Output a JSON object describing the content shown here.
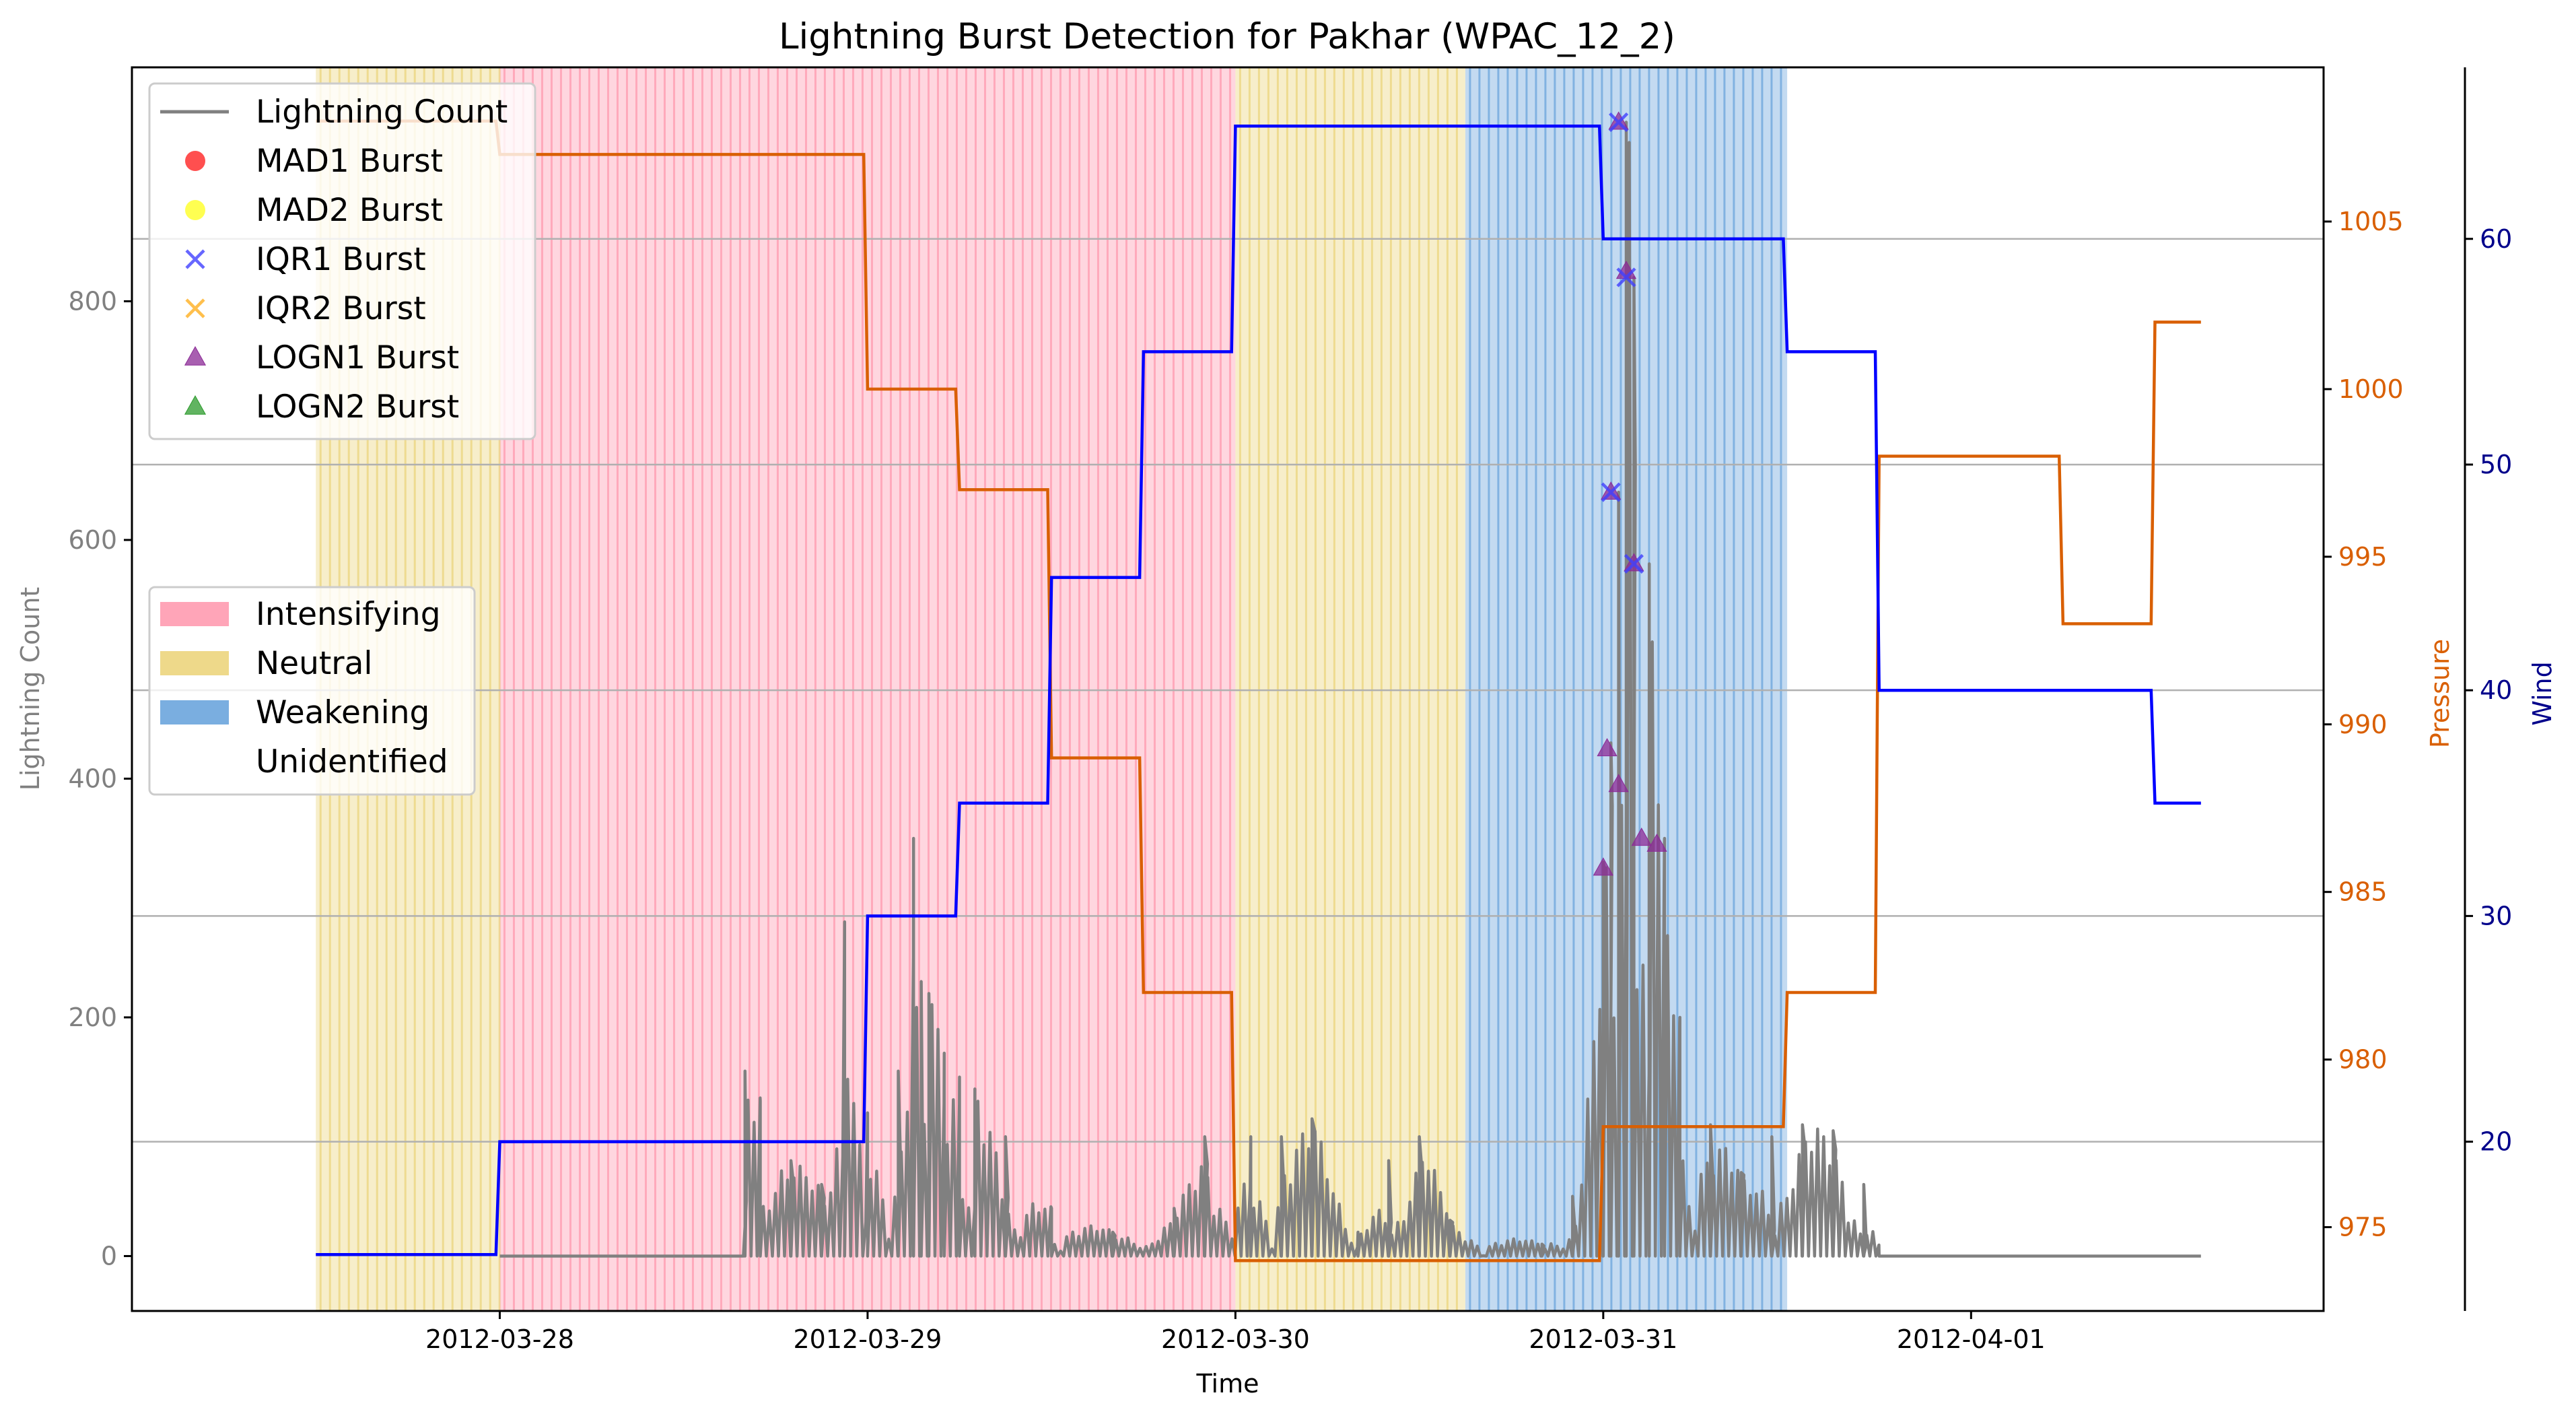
{
  "chart_data": {
    "type": "line",
    "title": "Lightning Burst Detection for Pakhar (WPAC_12_2)",
    "xlabel": "Time",
    "ylabel_left": "Lightning Count",
    "ylabel_right1": "Pressure",
    "ylabel_right2": "Wind",
    "x_ticks": [
      "2012-03-28",
      "2012-03-29",
      "2012-03-30",
      "2012-03-31",
      "2012-04-01"
    ],
    "x_range": [
      "2012-03-27T00:00",
      "2012-04-01T23:00"
    ],
    "y_left_range": [
      -46,
      996
    ],
    "y_left_ticks": [
      0,
      200,
      400,
      600,
      800
    ],
    "y_pressure_range": [
      972.5,
      1009.6
    ],
    "y_pressure_ticks": [
      975,
      980,
      985,
      990,
      995,
      1000,
      1005
    ],
    "y_wind_range": [
      12.5,
      67.6
    ],
    "y_wind_ticks": [
      20,
      30,
      40,
      50,
      60
    ],
    "grid": "horizontal on wind axis",
    "colors": {
      "lightning": "#808080",
      "pressure": "#d95f02",
      "wind": "#0000ff",
      "axis_pressure": "#d95f02",
      "axis_wind": "#00008b",
      "intensifying": "#ffa5b8",
      "neutral": "#eed98a",
      "weakening": "#7aaee0"
    },
    "phases": [
      {
        "label": "Neutral",
        "start": "2012-03-27T12:00",
        "end": "2012-03-28T00:00"
      },
      {
        "label": "Intensifying",
        "start": "2012-03-28T00:00",
        "end": "2012-03-30T00:00"
      },
      {
        "label": "Neutral",
        "start": "2012-03-30T00:00",
        "end": "2012-03-30T15:00"
      },
      {
        "label": "Weakening",
        "start": "2012-03-30T15:00",
        "end": "2012-03-31T12:00"
      }
    ],
    "pressure_series": {
      "name": "Pressure",
      "points": [
        [
          "2012-03-27T12:00",
          1008
        ],
        [
          "2012-03-27T23:45",
          1008
        ],
        [
          "2012-03-28T00:00",
          1007
        ],
        [
          "2012-03-28T23:45",
          1007
        ],
        [
          "2012-03-29T00:00",
          1000
        ],
        [
          "2012-03-29T05:45",
          1000
        ],
        [
          "2012-03-29T06:00",
          997
        ],
        [
          "2012-03-29T11:45",
          997
        ],
        [
          "2012-03-29T12:00",
          989
        ],
        [
          "2012-03-29T17:45",
          989
        ],
        [
          "2012-03-29T18:00",
          982
        ],
        [
          "2012-03-29T23:45",
          982
        ],
        [
          "2012-03-30T00:00",
          974
        ],
        [
          "2012-03-30T23:45",
          974
        ],
        [
          "2012-03-31T00:00",
          978
        ],
        [
          "2012-03-31T11:45",
          978
        ],
        [
          "2012-03-31T12:00",
          982
        ],
        [
          "2012-03-31T17:45",
          982
        ],
        [
          "2012-03-31T18:00",
          998
        ],
        [
          "2012-04-01T05:45",
          998
        ],
        [
          "2012-04-01T06:00",
          993
        ],
        [
          "2012-04-01T11:45",
          993
        ],
        [
          "2012-04-01T12:00",
          1002
        ],
        [
          "2012-04-01T15:00",
          1002
        ]
      ]
    },
    "wind_series": {
      "name": "Wind",
      "points": [
        [
          "2012-03-27T12:00",
          15
        ],
        [
          "2012-03-27T23:45",
          15
        ],
        [
          "2012-03-28T00:00",
          20
        ],
        [
          "2012-03-28T23:45",
          20
        ],
        [
          "2012-03-29T00:00",
          30
        ],
        [
          "2012-03-29T05:45",
          30
        ],
        [
          "2012-03-29T06:00",
          35
        ],
        [
          "2012-03-29T11:45",
          35
        ],
        [
          "2012-03-29T12:00",
          45
        ],
        [
          "2012-03-29T17:45",
          45
        ],
        [
          "2012-03-29T18:00",
          55
        ],
        [
          "2012-03-29T23:45",
          55
        ],
        [
          "2012-03-30T00:00",
          65
        ],
        [
          "2012-03-30T23:45",
          65
        ],
        [
          "2012-03-31T00:00",
          60
        ],
        [
          "2012-03-31T11:45",
          60
        ],
        [
          "2012-03-31T12:00",
          55
        ],
        [
          "2012-03-31T17:45",
          55
        ],
        [
          "2012-03-31T18:00",
          40
        ],
        [
          "2012-04-01T11:45",
          40
        ],
        [
          "2012-04-01T12:00",
          35
        ],
        [
          "2012-04-01T15:00",
          35
        ]
      ]
    },
    "lightning_series": {
      "name": "Lightning Count",
      "peaks": [
        [
          "2012-03-28T00:00",
          0
        ],
        [
          "2012-03-28T15:30",
          0
        ],
        [
          "2012-03-28T16:00",
          155
        ],
        [
          "2012-03-28T17:00",
          130
        ],
        [
          "2012-03-28T19:00",
          80
        ],
        [
          "2012-03-28T21:00",
          60
        ],
        [
          "2012-03-28T22:30",
          280
        ],
        [
          "2012-03-29T00:00",
          120
        ],
        [
          "2012-03-29T02:00",
          155
        ],
        [
          "2012-03-29T03:00",
          350
        ],
        [
          "2012-03-29T03:30",
          230
        ],
        [
          "2012-03-29T04:00",
          220
        ],
        [
          "2012-03-29T05:00",
          170
        ],
        [
          "2012-03-29T06:00",
          150
        ],
        [
          "2012-03-29T07:00",
          140
        ],
        [
          "2012-03-29T09:00",
          100
        ],
        [
          "2012-03-29T12:00",
          40
        ],
        [
          "2012-03-29T16:00",
          20
        ],
        [
          "2012-03-29T20:00",
          40
        ],
        [
          "2012-03-29T22:00",
          100
        ],
        [
          "2012-03-30T01:00",
          100
        ],
        [
          "2012-03-30T03:00",
          100
        ],
        [
          "2012-03-30T05:00",
          115
        ],
        [
          "2012-03-30T08:00",
          20
        ],
        [
          "2012-03-30T10:00",
          80
        ],
        [
          "2012-03-30T12:00",
          100
        ],
        [
          "2012-03-30T14:00",
          30
        ],
        [
          "2012-03-30T20:00",
          10
        ],
        [
          "2012-03-30T22:00",
          50
        ],
        [
          "2012-03-31T00:00",
          330
        ],
        [
          "2012-03-31T00:30",
          430
        ],
        [
          "2012-03-31T01:00",
          640
        ],
        [
          "2012-03-31T01:30",
          950
        ],
        [
          "2012-03-31T02:00",
          820
        ],
        [
          "2012-03-31T03:00",
          580
        ],
        [
          "2012-03-31T04:00",
          350
        ],
        [
          "2012-03-31T05:00",
          200
        ],
        [
          "2012-03-31T07:00",
          110
        ],
        [
          "2012-03-31T09:00",
          70
        ],
        [
          "2012-03-31T11:00",
          100
        ],
        [
          "2012-03-31T13:00",
          110
        ],
        [
          "2012-03-31T15:00",
          105
        ],
        [
          "2012-03-31T17:00",
          60
        ],
        [
          "2012-03-31T18:00",
          0
        ],
        [
          "2012-04-01T15:00",
          0
        ]
      ]
    },
    "bursts": {
      "IQR1": [
        [
          "2012-03-31T00:30",
          640
        ],
        [
          "2012-03-31T01:00",
          950
        ],
        [
          "2012-03-31T01:30",
          820
        ],
        [
          "2012-03-31T02:00",
          580
        ]
      ],
      "LOGN1": [
        [
          "2012-03-31T00:00",
          325
        ],
        [
          "2012-03-31T00:15",
          425
        ],
        [
          "2012-03-31T00:30",
          640
        ],
        [
          "2012-03-31T01:00",
          395
        ],
        [
          "2012-03-31T01:00",
          950
        ],
        [
          "2012-03-31T01:30",
          825
        ],
        [
          "2012-03-31T02:00",
          580
        ],
        [
          "2012-03-31T02:30",
          350
        ],
        [
          "2012-03-31T03:30",
          345
        ]
      ]
    },
    "legend_top": [
      {
        "label": "Lightning Count",
        "marker": "line",
        "color": "#808080"
      },
      {
        "label": "MAD1 Burst",
        "marker": "circle",
        "color": "#ff3030"
      },
      {
        "label": "MAD2 Burst",
        "marker": "circle",
        "color": "#ffff33"
      },
      {
        "label": "IQR1 Burst",
        "marker": "x",
        "color": "#4040ff"
      },
      {
        "label": "IQR2 Burst",
        "marker": "x",
        "color": "#ffb020"
      },
      {
        "label": "LOGN1 Burst",
        "marker": "triangle",
        "color": "#8b2a96"
      },
      {
        "label": "LOGN2 Burst",
        "marker": "triangle",
        "color": "#2c9b2c"
      }
    ],
    "legend_phase": [
      {
        "label": "Intensifying",
        "color": "#ffa5b8"
      },
      {
        "label": "Neutral",
        "color": "#eed98a"
      },
      {
        "label": "Weakening",
        "color": "#7aaee0"
      },
      {
        "label": "Unidentified",
        "color": "#ffffff"
      }
    ]
  }
}
